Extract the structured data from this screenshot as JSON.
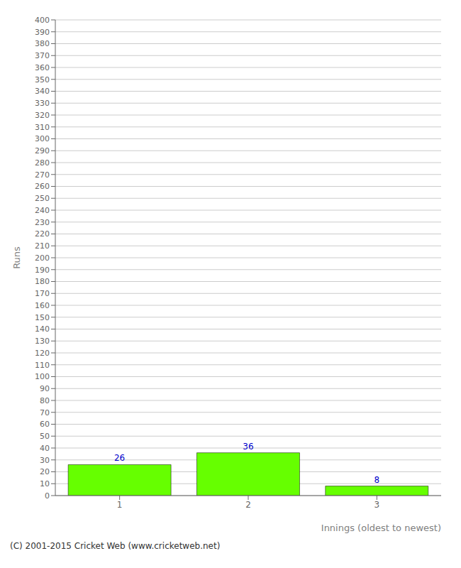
{
  "chart_data": {
    "type": "bar",
    "categories": [
      "1",
      "2",
      "3"
    ],
    "values": [
      26,
      36,
      8
    ],
    "color": "#66ff00",
    "xlabel": "Innings (oldest to newest)",
    "ylabel": "Runs",
    "ylim": [
      0,
      400
    ],
    "yticks": [
      0,
      10,
      20,
      30,
      40,
      50,
      60,
      70,
      80,
      90,
      100,
      110,
      120,
      130,
      140,
      150,
      160,
      170,
      180,
      190,
      200,
      210,
      220,
      230,
      240,
      250,
      260,
      270,
      280,
      290,
      300,
      310,
      320,
      330,
      340,
      350,
      360,
      370,
      380,
      390,
      400
    ],
    "grid": true,
    "data_labels": true,
    "annotations": [
      "(C) 2001-2015 Cricket Web (www.cricketweb.net)"
    ]
  }
}
